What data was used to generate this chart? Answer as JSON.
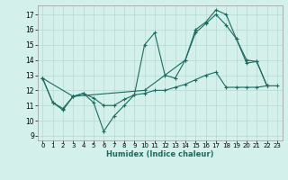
{
  "xlabel": "Humidex (Indice chaleur)",
  "background_color": "#d4f0eb",
  "grid_color": "#b5d8d3",
  "line_color": "#1a6b60",
  "xlim": [
    -0.5,
    23.5
  ],
  "ylim": [
    8.7,
    17.6
  ],
  "xticks": [
    0,
    1,
    2,
    3,
    4,
    5,
    6,
    7,
    8,
    9,
    10,
    11,
    12,
    13,
    14,
    15,
    16,
    17,
    18,
    19,
    20,
    21,
    22,
    23
  ],
  "yticks": [
    9,
    10,
    11,
    12,
    13,
    14,
    15,
    16,
    17
  ],
  "line1_x": [
    0,
    1,
    2,
    3,
    4,
    5,
    6,
    7,
    8,
    9,
    10,
    11,
    12,
    13,
    14,
    15,
    16,
    17,
    18,
    19,
    20,
    21,
    22
  ],
  "line1_y": [
    12.8,
    11.2,
    10.7,
    11.6,
    11.8,
    11.2,
    9.3,
    10.3,
    11.0,
    11.7,
    15.0,
    15.8,
    13.0,
    12.8,
    14.0,
    16.0,
    16.5,
    17.3,
    17.0,
    15.4,
    13.8,
    13.9,
    12.3
  ],
  "line2_x": [
    0,
    1,
    2,
    3,
    4,
    5,
    6,
    7,
    8,
    9,
    10,
    11,
    12,
    13,
    14,
    15,
    16,
    17,
    18,
    19,
    20,
    21,
    22,
    23
  ],
  "line2_y": [
    12.8,
    11.2,
    10.8,
    11.6,
    11.8,
    11.5,
    11.0,
    11.0,
    11.4,
    11.7,
    11.8,
    12.0,
    12.0,
    12.2,
    12.4,
    12.7,
    13.0,
    13.2,
    12.2,
    12.2,
    12.2,
    12.2,
    12.3,
    12.3
  ],
  "line3_x": [
    0,
    3,
    10,
    14,
    15,
    16,
    17,
    18,
    19,
    20,
    21,
    22
  ],
  "line3_y": [
    12.8,
    11.6,
    12.0,
    14.0,
    15.8,
    16.4,
    17.0,
    16.3,
    15.4,
    14.0,
    13.9,
    12.3
  ]
}
